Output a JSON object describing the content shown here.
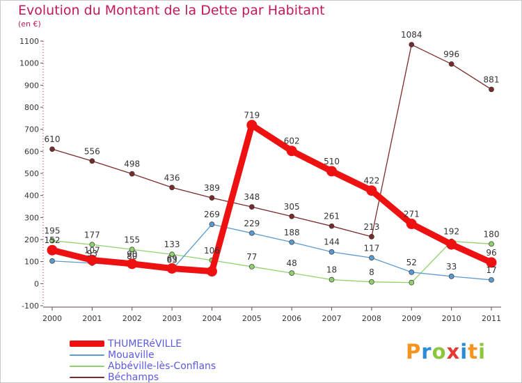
{
  "header": {
    "title": "Evolution du Montant de la Dette par Habitant",
    "unit": "(en €)"
  },
  "brand": {
    "name": "Proxiti",
    "colors": [
      "#f7941d",
      "#2e8bd6",
      "#8cc63f",
      "#e53935",
      "#2e8bd6",
      "#f7941d",
      "#8cc63f"
    ]
  },
  "chart_data": {
    "type": "line",
    "title": "Evolution du Montant de la Dette par Habitant",
    "subtitle": "(en €)",
    "x": [
      "2000",
      "2001",
      "2002",
      "2003",
      "2004",
      "2005",
      "2006",
      "2007",
      "2008",
      "2009",
      "2010",
      "2011"
    ],
    "ylim": [
      -100,
      1100
    ],
    "yticks": [
      -100,
      0,
      100,
      200,
      300,
      400,
      500,
      600,
      700,
      800,
      900,
      1000,
      1100
    ],
    "grid": false,
    "legend_position": "bottom-left",
    "series": [
      {
        "name": "THUMERéVILLE",
        "color": "#ee1111",
        "values": [
          152,
          107,
          90,
          69,
          56,
          719,
          602,
          510,
          422,
          271,
          178,
          96
        ],
        "labels": [
          "152",
          "107",
          "90",
          "69",
          "",
          "719",
          "602",
          "510",
          "422",
          "271",
          "",
          "96"
        ]
      },
      {
        "name": "Mouaville",
        "color": "#5a9ad0",
        "values": [
          103,
          93,
          80,
          63,
          269,
          229,
          188,
          144,
          117,
          52,
          33,
          17
        ],
        "labels": [
          "",
          "93",
          "80",
          "63",
          "269",
          "229",
          "188",
          "144",
          "117",
          "52",
          "33",
          "17"
        ]
      },
      {
        "name": "Abbéville-lès-Conflans",
        "color": "#8fd16a",
        "values": [
          195,
          177,
          155,
          133,
          106,
          77,
          48,
          18,
          8,
          5,
          192,
          180
        ],
        "labels": [
          "195",
          "177",
          "155",
          "133",
          "106",
          "77",
          "48",
          "18",
          "8",
          "",
          "192",
          "180"
        ]
      },
      {
        "name": "Béchamps",
        "color": "#7a2a2a",
        "values": [
          610,
          556,
          498,
          436,
          389,
          348,
          305,
          261,
          213,
          1084,
          996,
          881
        ],
        "labels": [
          "610",
          "556",
          "498",
          "436",
          "389",
          "348",
          "305",
          "261",
          "213",
          "1084",
          "996",
          "881"
        ]
      }
    ]
  }
}
